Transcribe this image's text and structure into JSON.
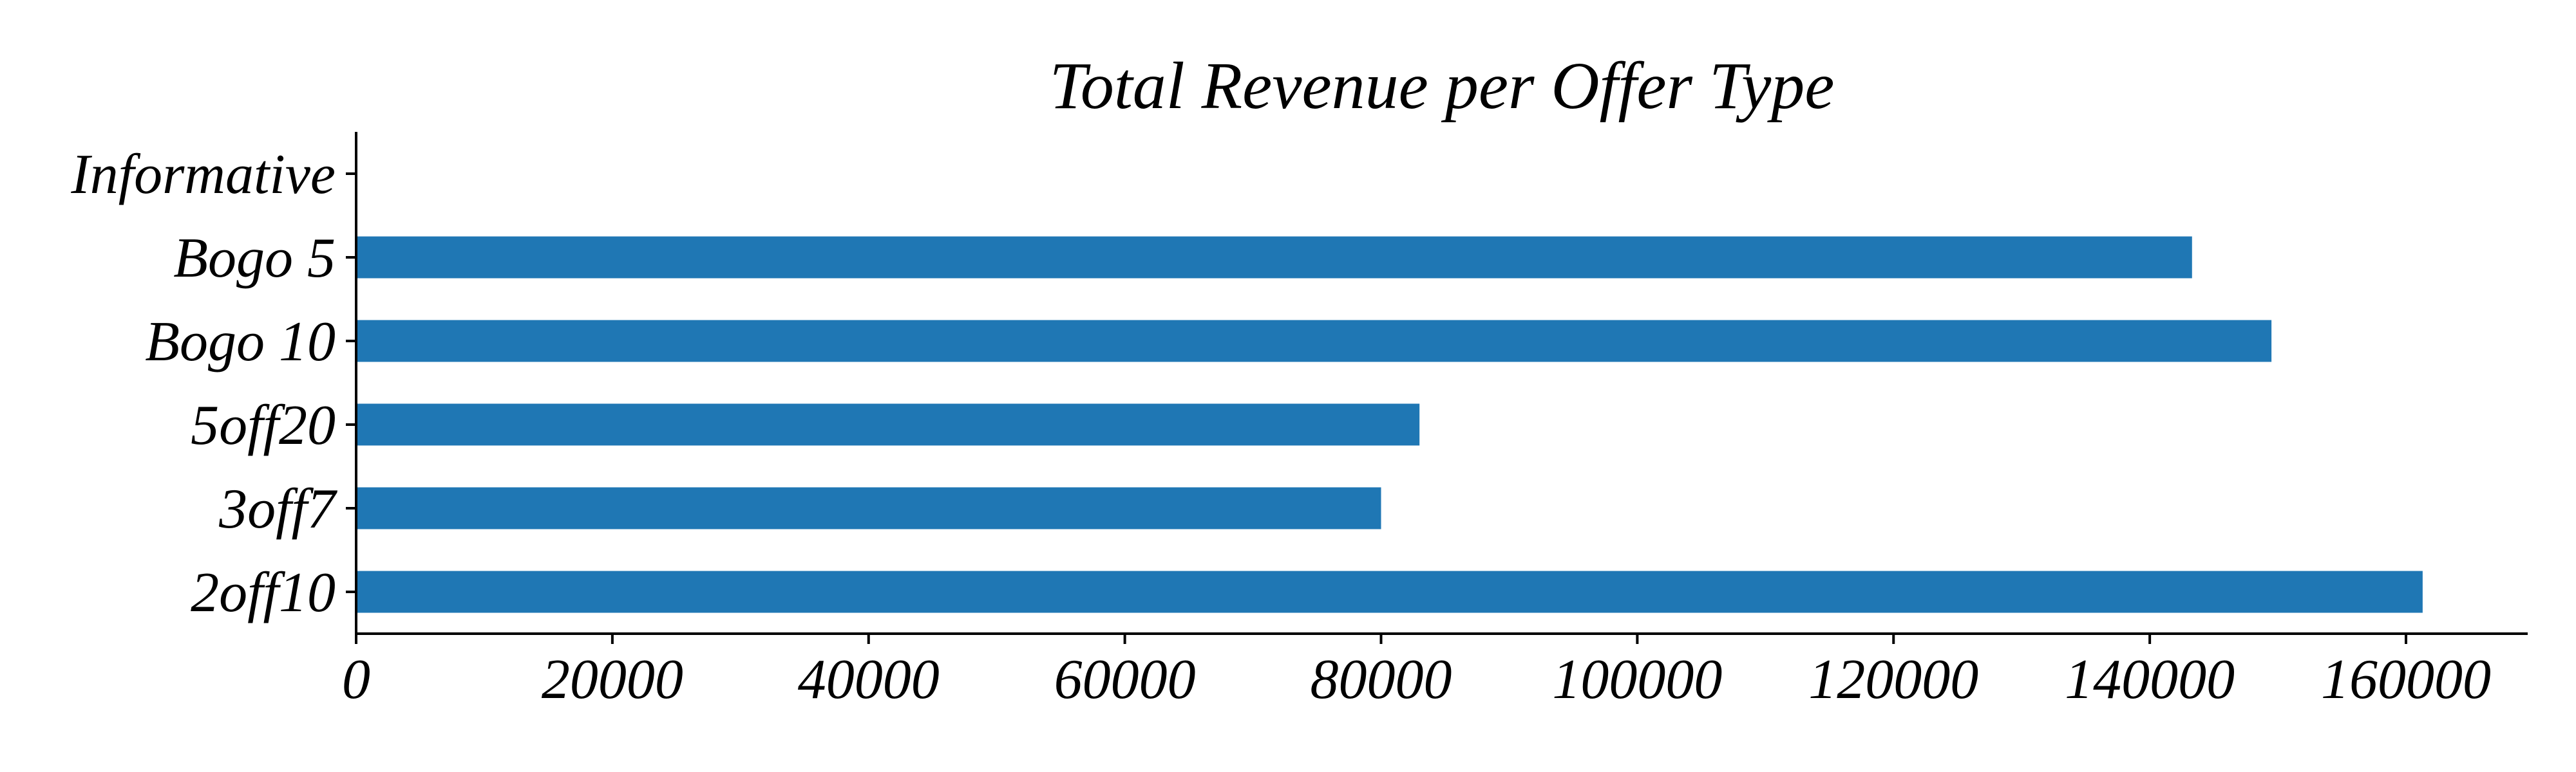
{
  "chart_data": {
    "type": "bar",
    "orientation": "horizontal",
    "title": "Total Revenue per Offer Type",
    "xlabel": "",
    "ylabel": "",
    "categories": [
      "2off10",
      "3off7",
      "5off20",
      "Bogo 10",
      "Bogo 5",
      "Informative"
    ],
    "values": [
      161300,
      80000,
      83000,
      149500,
      143300,
      0
    ],
    "xlim": [
      0,
      169500
    ],
    "xticks": [
      0,
      20000,
      40000,
      60000,
      80000,
      100000,
      120000,
      140000,
      160000
    ],
    "grid": false,
    "legend": "none",
    "bar_color": "#1f77b4",
    "spines": {
      "top": false,
      "right": false,
      "left": true,
      "bottom": true
    }
  }
}
